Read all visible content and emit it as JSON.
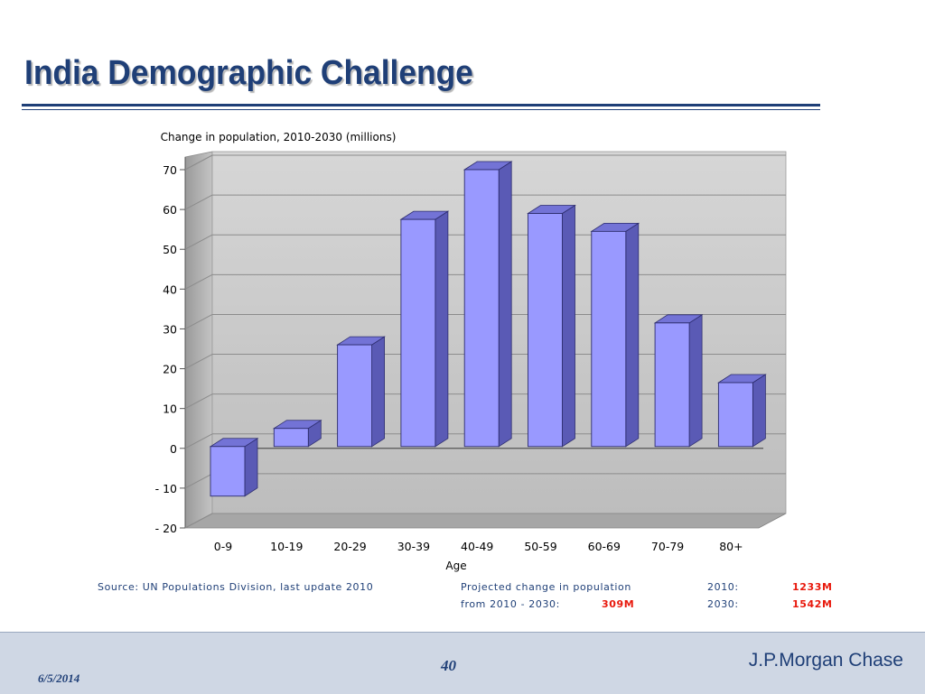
{
  "slide": {
    "title": "India Demographic Challenge",
    "source": "Source: UN Populations Division, last update 2010",
    "projection": {
      "line1_label": "Projected change in population",
      "line2_label": "from 2010 - 2030:",
      "change_value": "309M",
      "y2010_label": "2010:",
      "y2010_value": "1233M",
      "y2030_label": "2030:",
      "y2030_value": "1542M"
    },
    "footer": {
      "date": "6/5/2014",
      "page": "40",
      "brand": "J.P.Morgan Chase"
    }
  },
  "chart_data": {
    "type": "bar",
    "title": "Change in population, 2010-2030  (millions)",
    "xlabel": "Age",
    "ylabel": "",
    "categories": [
      "0-9",
      "10-19",
      "20-29",
      "30-39",
      "40-49",
      "50-59",
      "60-69",
      "70-79",
      "80+"
    ],
    "values": [
      -12,
      5,
      26,
      57.5,
      70,
      59,
      54.5,
      31.5,
      16.5
    ],
    "ylim": [
      -20,
      70
    ],
    "yticks": [
      70,
      60,
      50,
      40,
      30,
      20,
      10,
      0,
      -10,
      -20
    ],
    "ytick_labels": [
      "70",
      "60",
      "50",
      "40",
      "30",
      "20",
      "10",
      "0",
      "-   10",
      "-   20"
    ],
    "grid": true,
    "legend": "none",
    "colors": {
      "bar_front": "#9999ff",
      "bar_side": "#5a5ab5",
      "bar_top": "#7373d6"
    }
  }
}
